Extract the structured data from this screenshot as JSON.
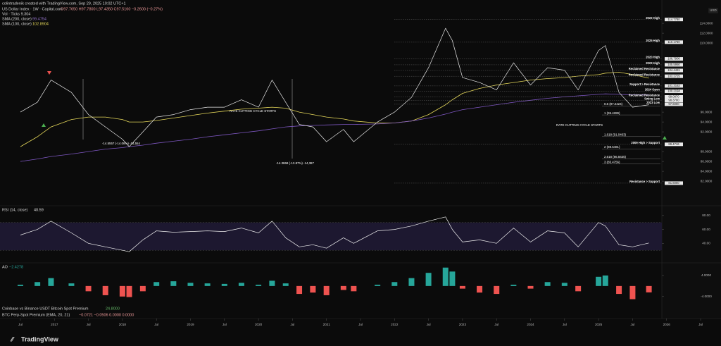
{
  "header": {
    "credit": "colintradenik created with TradingView.com, Sep 29, 2025 10:02 UTC+1",
    "ohlc": "O97.7650 H97.7800 L97.4350 C97.5160 −0.2600 (−0.27%)",
    "vol": "Vol · Ticks 9.304",
    "sma_a_value": "99.4754",
    "sma_b_value": "102.8904"
  },
  "indicators": {
    "coinbase": "Coinbase vs Binance USDT Bitcoin Spot Premium",
    "coinbase_value": "24.8000",
    "perp": "BTC Perp-Spot Premium (EMA, 20, 21)",
    "perp_values": "−0.0721 −0.0506 0.0000 0.0000"
  },
  "footer": {
    "brand": "TradingView"
  },
  "chart_data": [
    {
      "type": "line",
      "xlim": [
        2016.2,
        2026.8
      ],
      "ylim": [
        77.3,
        117.3
      ],
      "x": [
        2016.5,
        2016.75,
        2016.95,
        2017.25,
        2017.5,
        2017.75,
        2018.0,
        2018.1,
        2018.3,
        2018.5,
        2018.75,
        2019.0,
        2019.25,
        2019.5,
        2019.75,
        2020.0,
        2020.2,
        2020.4,
        2020.6,
        2020.8,
        2021.0,
        2021.25,
        2021.4,
        2021.75,
        2022.0,
        2022.25,
        2022.5,
        2022.75,
        2022.85,
        2023.0,
        2023.25,
        2023.5,
        2023.75,
        2024.0,
        2024.25,
        2024.5,
        2024.7,
        2025.0,
        2025.1,
        2025.3,
        2025.5,
        2025.74
      ],
      "series": [
        {
          "name": "US Dollar Index · 1W · Capital.com",
          "color": "#e8e8e8",
          "values": [
            96,
            98,
            102.5,
            100,
            95.5,
            93,
            90.5,
            89,
            92,
            95,
            95.5,
            96.5,
            97,
            97,
            98.5,
            97,
            102.5,
            98,
            93.5,
            93,
            90,
            92.5,
            90,
            94,
            96,
            99,
            105,
            113,
            110.5,
            103,
            102,
            100.5,
            106,
            101.5,
            105,
            104.5,
            100.5,
            108.5,
            109.5,
            100,
            97,
            97.5
          ]
        },
        {
          "name": "SMA (200, close)",
          "color": "#7e57c2",
          "values": [
            86,
            86.5,
            87,
            87.5,
            88,
            88.5,
            88.8,
            89,
            89.3,
            89.7,
            90.1,
            90.5,
            91,
            91.4,
            91.8,
            92.2,
            92.6,
            93,
            93.2,
            93.3,
            93.4,
            93.5,
            93.5,
            93.6,
            93.8,
            94.2,
            94.8,
            95.6,
            96,
            96.5,
            97,
            97.5,
            98,
            98.4,
            98.8,
            99.1,
            99.3,
            99.6,
            99.7,
            99.6,
            99.5,
            99.4754
          ]
        },
        {
          "name": "SMA (100, close)",
          "color": "#e6d85a",
          "values": [
            89,
            91,
            93,
            94.5,
            95,
            95,
            94.5,
            94,
            94,
            94.3,
            94.8,
            95.3,
            95.8,
            96.2,
            96.6,
            96.8,
            97,
            96.8,
            96,
            95.5,
            95,
            94.6,
            94.2,
            93.8,
            93.8,
            94.2,
            95.5,
            97.5,
            98.5,
            99.8,
            100.8,
            101.5,
            102,
            102.5,
            102.8,
            103,
            103.3,
            103.6,
            103.9,
            104.1,
            103.6,
            102.8904
          ]
        }
      ],
      "yticks": [
        {
          "value": 114,
          "label": "114.0000"
        },
        {
          "value": 112,
          "label": "112.0000"
        },
        {
          "value": 110,
          "label": "110.0000"
        },
        {
          "value": 96,
          "label": "96.0000"
        },
        {
          "value": 94,
          "label": "94.0000"
        },
        {
          "value": 92,
          "label": "92.0000"
        },
        {
          "value": 88,
          "label": "88.0000"
        },
        {
          "value": 86,
          "label": "86.0000"
        },
        {
          "value": 84,
          "label": "84.0000"
        },
        {
          "value": 82,
          "label": "82.0000"
        }
      ],
      "xticks": [
        {
          "value": 2016.5,
          "label": "Jul"
        },
        2017,
        {
          "value": 2017.5,
          "label": "Jul"
        },
        2018,
        {
          "value": 2018.5,
          "label": "Jul"
        },
        2019,
        {
          "value": 2019.5,
          "label": "Jul"
        },
        2020,
        {
          "value": 2020.5,
          "label": "Jul"
        },
        2021,
        {
          "value": 2021.5,
          "label": "Jul"
        },
        2022,
        {
          "value": 2022.5,
          "label": "Jul"
        },
        2023,
        {
          "value": 2023.5,
          "label": "Jul"
        },
        2024,
        {
          "value": 2024.5,
          "label": "Jul"
        },
        2025,
        {
          "value": 2025.5,
          "label": "Jul"
        },
        2026,
        {
          "value": 2026.5,
          "label": "Jul"
        }
      ],
      "levels": [
        {
          "label": "2022 High",
          "value": 114.778,
          "value_label": "114.7780"
        },
        {
          "label": "2025 High",
          "value": 110.176,
          "value_label": "110.1760"
        },
        {
          "label": "2020 High",
          "value": 106.79,
          "value_label": "106.7900"
        },
        {
          "label": "2023 High",
          "value": 105.595,
          "value_label": "105.5950"
        },
        {
          "label": "Reclaimed Resistance",
          "value": 104.4431,
          "value_label": "104.4431"
        },
        {
          "label": "Reclaimed Resistance",
          "value": 103.2725,
          "value_label": "103.2725"
        },
        {
          "label": "Support > Resistance",
          "value": 101.3162,
          "value_label": "101.3162"
        },
        {
          "label": "2024 Open",
          "value": 100.2194,
          "value_label": "100.2194"
        },
        {
          "label": "Reclaimed Resistance",
          "value": 99.087,
          "value_label": "99.0870"
        },
        {
          "label": "Swing Low",
          "value": 98.37,
          "value_label": "98.3700"
        },
        {
          "label": "2023 Low",
          "value": 97.6,
          "value_label": "97.6000"
        },
        {
          "label": "2009 High > Support",
          "value": 89.4716,
          "value_label": "89.4716"
        },
        {
          "label": "Resistance > Support",
          "value": 81.6,
          "value_label": "81.6000"
        }
      ],
      "fibs": [
        {
          "label": "0.5 (97.2424)",
          "value": 97.2424
        },
        {
          "label": "1 (95.4289)",
          "value": 95.4289
        },
        {
          "label": "1.618 (91.0463)",
          "value": 91.0463
        },
        {
          "label": "2 (88.5481)",
          "value": 88.5481
        },
        {
          "label": "2.618 (86.5635)",
          "value": 86.5635
        },
        {
          "label": "3 (85.4756)",
          "value": 85.4756
        }
      ],
      "annotations": [
        "-14.5557 (-14.06%) -14,554",
        "-14.3868 (-13.87%) -14,387",
        "RATE CUTTING CYCLE STARTS",
        "RATE CUTTING CYCLE STARTS"
      ]
    },
    {
      "type": "line",
      "title": "RSI (14, close)",
      "value_label": "40.59",
      "color": "#f0f0f0",
      "ylim": [
        15,
        90
      ],
      "band": [
        30,
        70
      ],
      "values": [
        52,
        60,
        72,
        55,
        40,
        35,
        30,
        28,
        45,
        58,
        56,
        57,
        58,
        57,
        62,
        55,
        72,
        48,
        35,
        38,
        33,
        48,
        40,
        58,
        60,
        65,
        72,
        78,
        60,
        42,
        45,
        40,
        62,
        42,
        58,
        55,
        35,
        70,
        65,
        38,
        35,
        40.59
      ],
      "yticks": [
        {
          "value": 80,
          "label": "80.00"
        },
        {
          "value": 60,
          "label": "60.00"
        },
        {
          "value": 40,
          "label": "40.00"
        }
      ]
    },
    {
      "type": "bar",
      "title": "AO",
      "value_label": "−2.4278",
      "colors": {
        "up": "#26a69a",
        "down": "#ef5350"
      },
      "ylim": [
        -7,
        8
      ],
      "values": [
        0.5,
        1.5,
        3,
        1,
        -2,
        -3.5,
        -4,
        -4.2,
        -2,
        1.5,
        1.8,
        1.2,
        1,
        0.8,
        1.2,
        0.5,
        2,
        1,
        -3,
        -2.5,
        -3.5,
        -1.5,
        -2,
        0.5,
        1.5,
        3,
        5,
        7,
        5.5,
        -1,
        -2.5,
        -3,
        0.5,
        -1,
        1.5,
        1.2,
        -2,
        3.5,
        4,
        -3,
        -5,
        -2.4278
      ],
      "yticks": [
        {
          "value": 4,
          "label": "4.0000"
        },
        {
          "value": -4,
          "label": "-4.0000"
        }
      ]
    }
  ]
}
